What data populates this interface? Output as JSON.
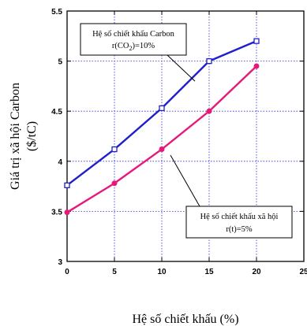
{
  "chart_data": {
    "type": "line",
    "xlabel": "Hệ số chiết khấu (%)",
    "ylabel_line1": "Giá trị xã hội Carbon",
    "ylabel_line2": "($/tC)",
    "xlim": [
      0,
      25
    ],
    "ylim": [
      3,
      5.5
    ],
    "xticks": [
      "0",
      "5",
      "10",
      "15",
      "20",
      "25"
    ],
    "yticks": [
      "3",
      "3.5",
      "4",
      "4.5",
      "5",
      "5.5"
    ],
    "grid": true,
    "series": [
      {
        "name": "Hệ số chiết khấu Carbon r(CO2)=10%",
        "color": "#1f1fcc",
        "marker": "square",
        "x": [
          0,
          5,
          10,
          15,
          20
        ],
        "y": [
          3.76,
          4.12,
          4.53,
          5.0,
          5.2
        ]
      },
      {
        "name": "Hệ số chiết khấu xã hội r(t)=5%",
        "color": "#e6197a",
        "marker": "circle",
        "x": [
          0,
          5,
          10,
          15,
          20
        ],
        "y": [
          3.49,
          3.78,
          4.12,
          4.5,
          4.95
        ]
      }
    ],
    "annotations": [
      {
        "line1": "Hệ số chiết khấu Carbon",
        "line2_prefix": "r(CO",
        "line2_sub": "2",
        "line2_suffix": ")=10%"
      },
      {
        "line1": "Hệ số chiết khấu xã hội",
        "line2": "r(t)=5%"
      }
    ]
  }
}
